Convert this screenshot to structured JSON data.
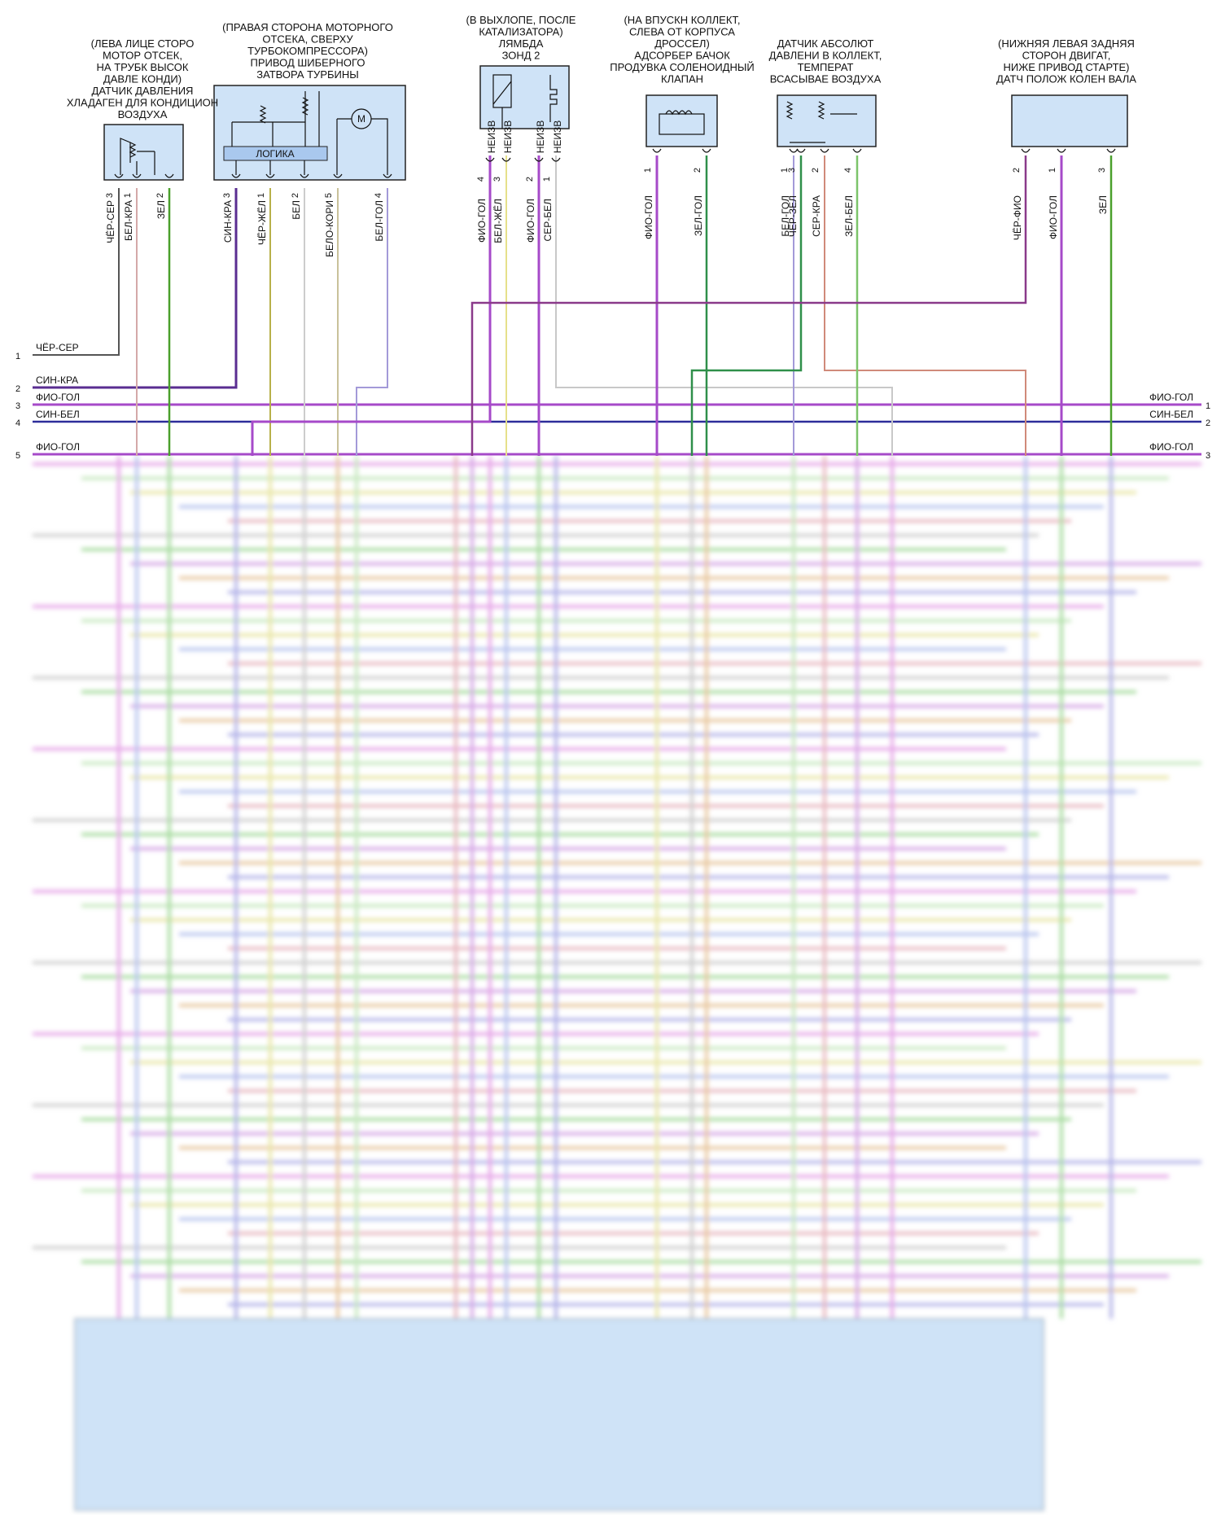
{
  "components": [
    {
      "id": "ac-pressure",
      "title_lines": [
        "(ЛЕВА ЛИЦЕ СТОРО",
        "МОТОР ОТСЕК,",
        "НА ТРУБК ВЫСОК",
        "ДАВЛЕ КОНДИ)",
        "ДАТЧИК ДАВЛЕНИЯ",
        "ХЛАДАГЕН ДЛЯ КОНДИЦИОН",
        "ВОЗДУХА"
      ],
      "pins": [
        {
          "num": "3",
          "wire": "ЧЁР-СЕР",
          "color": "#555555"
        },
        {
          "num": "1",
          "wire": "БЕЛ-КРА",
          "color": "#d4a9a9"
        },
        {
          "num": "2",
          "wire": "ЗЕЛ",
          "color": "#4aa02c"
        }
      ]
    },
    {
      "id": "turbo-actuator",
      "title_lines": [
        "(ПРАВАЯ СТОРОНА МОТОРНОГО",
        "ОТСЕКА, СВЕРХУ",
        "ТУРБОКОМПРЕССОРА)",
        "ПРИВОД ШИБЕРНОГО",
        "ЗАТВОРА ТУРБИНЫ"
      ],
      "logic_label": "ЛОГИКА",
      "motor_label": "M",
      "pins": [
        {
          "num": "3",
          "wire": "СИН-КРА",
          "color": "#5a2d91"
        },
        {
          "num": "1",
          "wire": "ЧЁР-ЖЁЛ",
          "color": "#b8b04a"
        },
        {
          "num": "2",
          "wire": "БЕЛ",
          "color": "#cccccc"
        },
        {
          "num": "5",
          "wire": "БЕЛО-КОРИ",
          "color": "#c9c19a"
        },
        {
          "num": "4",
          "wire": "БЕЛ-ГОЛ",
          "color": "#a39ad8"
        }
      ]
    },
    {
      "id": "lambda-2",
      "title_lines": [
        "(В ВЫХЛОПЕ, ПОСЛЕ",
        "КАТАЛИЗАТОРА)",
        "ЛЯМБДА",
        "ЗОНД 2"
      ],
      "pins": [
        {
          "num": "4",
          "wire": "ФИО-ГОЛ",
          "tag": "НЕИЗВ",
          "color": "#a64ac9"
        },
        {
          "num": "3",
          "wire": "БЕЛ-ЖЁЛ",
          "tag": "НЕИЗВ",
          "color": "#e6e08a"
        },
        {
          "num": "2",
          "wire": "ФИО-ГОЛ",
          "tag": "НЕИЗВ",
          "color": "#a64ac9"
        },
        {
          "num": "1",
          "wire": "СЕР-БЕЛ",
          "tag": "НЕИЗВ",
          "color": "#c8c8c8"
        }
      ]
    },
    {
      "id": "purge-valve",
      "title_lines": [
        "(НА ВПУСКН КОЛЛЕКТ,",
        "СЛЕВА ОТ КОРПУСА",
        "ДРОССЕЛ)",
        "АДСОРБЕР БАЧОК",
        "ПРОДУВКА СОЛЕНОИДНЫЙ",
        "КЛАПАН"
      ],
      "pins": [
        {
          "num": "1",
          "wire": "ФИО-ГОЛ",
          "color": "#a64ac9"
        },
        {
          "num": "2",
          "wire": "ЗЕЛ-ГОЛ",
          "color": "#2f8f4a"
        }
      ]
    },
    {
      "id": "map-sensor",
      "title_lines": [
        "ДАТЧИК АБСОЛЮТ",
        "ДАВЛЕНИ В КОЛЛЕКТ,",
        "ТЕМПЕРАТ",
        "ВСАСЫВАЕ ВОЗДУХА"
      ],
      "pins": [
        {
          "num": "1",
          "wire": "БЕЛ-ГОЛ",
          "color": "#a39ad8"
        },
        {
          "num": "3",
          "wire": "ЧЁР-ЗЕЛ",
          "color": "#5f8a5f"
        },
        {
          "num": "2",
          "wire": "СЕР-КРА",
          "color": "#d08a7a"
        },
        {
          "num": "4",
          "wire": "ЗЕЛ-БЕЛ",
          "color": "#7cc46a"
        }
      ]
    },
    {
      "id": "crank-sensor",
      "title_lines": [
        "(НИЖНЯЯ ЛЕВАЯ ЗАДНЯЯ",
        "СТОРОН ДВИГАТ,",
        "НИЖЕ ПРИВОД СТАРТЕ)",
        "ДАТЧ ПОЛОЖ КОЛЕН ВАЛА"
      ],
      "pins": [
        {
          "num": "2",
          "wire": "ЧЁР-ФИО",
          "color": "#8a3a8a"
        },
        {
          "num": "1",
          "wire": "ФИО-ГОЛ",
          "color": "#a64ac9"
        },
        {
          "num": "3",
          "wire": "ЗЕЛ",
          "color": "#4aa02c"
        }
      ]
    }
  ],
  "harness_left": [
    {
      "num": "1",
      "wire": "ЧЁР-СЕР"
    },
    {
      "num": "2",
      "wire": "СИН-КРА"
    },
    {
      "num": "3",
      "wire": "ФИО-ГОЛ"
    },
    {
      "num": "4",
      "wire": "СИН-БЕЛ"
    },
    {
      "num": "5",
      "wire": "ФИО-ГОЛ"
    }
  ],
  "harness_right": [
    {
      "num": "1",
      "wire": "ФИО-ГОЛ"
    },
    {
      "num": "2",
      "wire": "СИН-БЕЛ"
    },
    {
      "num": "3",
      "wire": "ФИО-ГОЛ"
    }
  ],
  "colors": {
    "connector_fill": "#cfe3f7",
    "connector_stroke": "#222222",
    "logic_fill": "#a9c8ee",
    "fio_gol": "#a64ac9",
    "sin_bel": "#2d2d9a",
    "sin_kra": "#5a2d91",
    "cher_ser": "#555555"
  }
}
